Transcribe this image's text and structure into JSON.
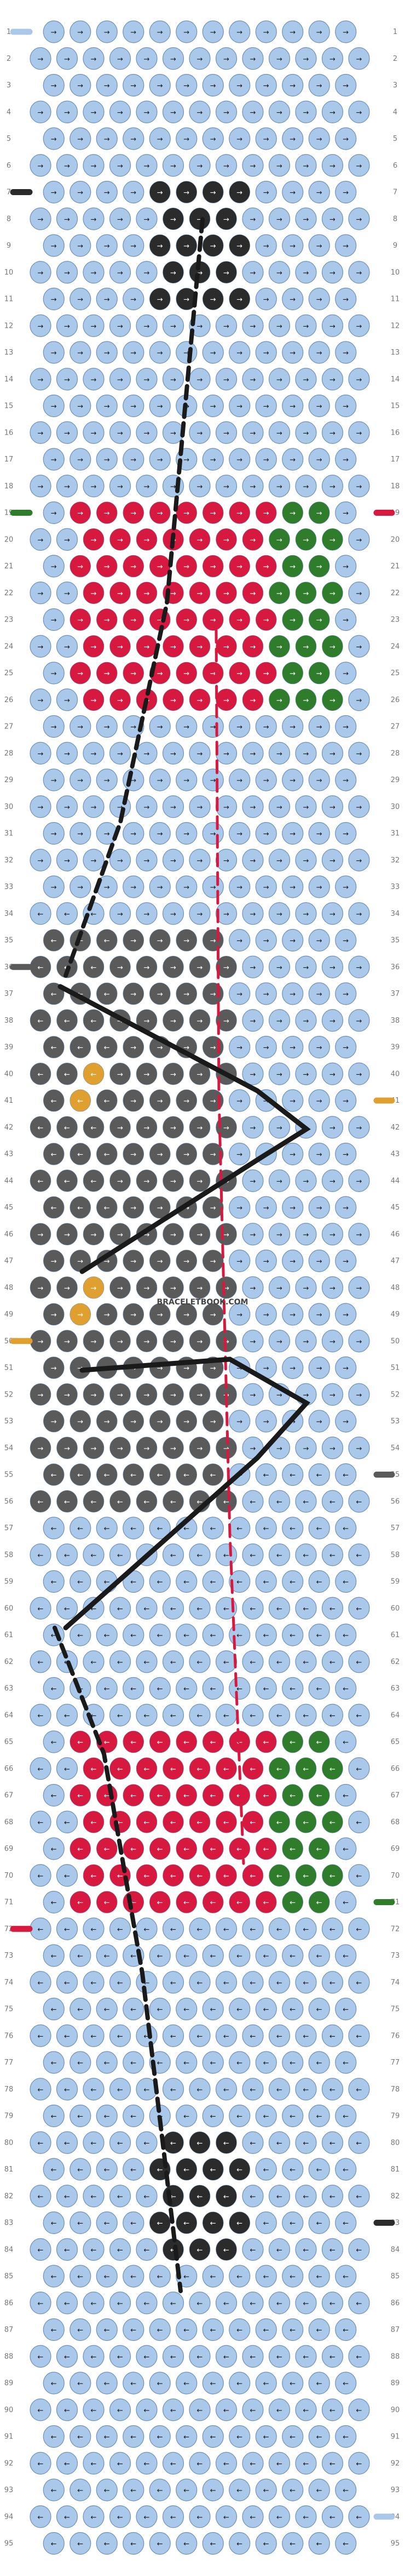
{
  "pattern": {
    "rows": 95,
    "columns": 13,
    "watermark": "BRACELETBOOK.COM",
    "colors": {
      "A": "#a9c8ea",
      "B": "#2b2b2b",
      "C": "#d7193f",
      "D": "#2f7d2a",
      "E": "#5a5a5a",
      "F": "#e0a030"
    },
    "left_strings": [
      {
        "row": 1,
        "color": "A"
      },
      {
        "row": 7,
        "color": "B"
      },
      {
        "row": 19,
        "color": "D"
      },
      {
        "row": 36,
        "color": "E"
      },
      {
        "row": 50,
        "color": "F"
      },
      {
        "row": 72,
        "color": "C"
      }
    ],
    "right_strings": [
      {
        "row": 19,
        "color": "C"
      },
      {
        "row": 41,
        "color": "F"
      },
      {
        "row": 55,
        "color": "E"
      },
      {
        "row": 71,
        "color": "D"
      },
      {
        "row": 83,
        "color": "B"
      },
      {
        "row": 94,
        "color": "A"
      }
    ],
    "row_labels": [
      "1",
      "2",
      "3",
      "4",
      "5",
      "6",
      "7",
      "8",
      "9",
      "10",
      "11",
      "12",
      "13",
      "14",
      "15",
      "16",
      "17",
      "18",
      "19",
      "20",
      "21",
      "22",
      "23",
      "24",
      "25",
      "26",
      "27",
      "28",
      "29",
      "30",
      "31",
      "32",
      "33",
      "34",
      "35",
      "36",
      "37",
      "38",
      "39",
      "40",
      "41",
      "42",
      "43",
      "44",
      "45",
      "46",
      "47",
      "48",
      "49",
      "50",
      "51",
      "52",
      "53",
      "54",
      "55",
      "56",
      "57",
      "58",
      "59",
      "60",
      "61",
      "62",
      "63",
      "64",
      "65",
      "66",
      "67",
      "68",
      "69",
      "70",
      "71",
      "72",
      "73",
      "74",
      "75",
      "76",
      "77",
      "78",
      "79",
      "80",
      "81",
      "82",
      "83",
      "84",
      "85",
      "86",
      "87",
      "88",
      "89",
      "90",
      "91",
      "92",
      "93",
      "94",
      "95"
    ]
  }
}
